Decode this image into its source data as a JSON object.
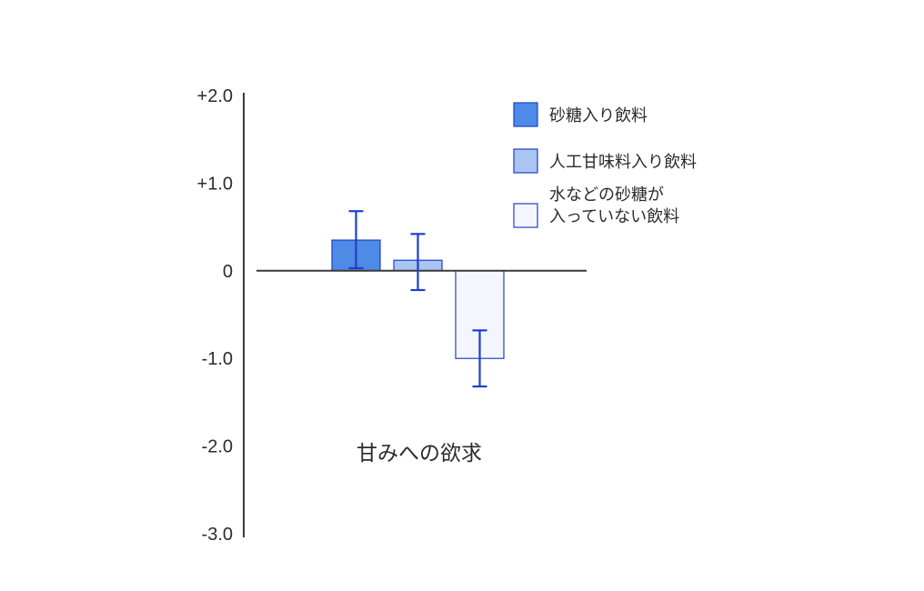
{
  "chart_data": {
    "type": "bar",
    "title": "",
    "xlabel": "甘みへの欲求",
    "ylabel": "",
    "ylim": [
      -3.0,
      2.0
    ],
    "yticks": [
      {
        "value": 2.0,
        "label": "+2.0"
      },
      {
        "value": 1.0,
        "label": "+1.0"
      },
      {
        "value": 0.0,
        "label": "0"
      },
      {
        "value": -1.0,
        "label": "-1.0"
      },
      {
        "value": -2.0,
        "label": "-2.0"
      },
      {
        "value": -3.0,
        "label": "-3.0"
      }
    ],
    "grid": false,
    "legend_position": "top-right",
    "series": [
      {
        "legend_lines": [
          "砂糖入り飲料"
        ],
        "value": 0.35,
        "error_low": 0.03,
        "error_high": 0.68,
        "fill": "#4d8be6",
        "stroke": "#1f3fc9"
      },
      {
        "legend_lines": [
          "人工甘味料入り飲料"
        ],
        "value": 0.12,
        "error_low": -0.22,
        "error_high": 0.42,
        "fill": "#a9c5f2",
        "stroke": "#1f3fc9"
      },
      {
        "legend_lines": [
          "水などの砂糖が",
          "入っていない飲料"
        ],
        "value": -1.0,
        "error_low": -1.32,
        "error_high": -0.68,
        "fill": "#f3f7fd",
        "stroke": "#1f3fc9"
      }
    ],
    "colors": {
      "axis": "#3a3a3a",
      "error_bar": "#1f3fc9",
      "text": "#2b2b2b"
    }
  }
}
